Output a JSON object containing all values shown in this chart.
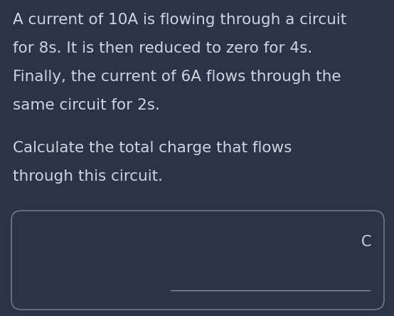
{
  "background_color": "#2b3347",
  "text_color": "#d0d4de",
  "line1": "A current of 10A is flowing through a circuit",
  "line2": "for 8s. It is then reduced to zero for 4s.",
  "line3": "Finally, the current of 6A flows through the",
  "line4": "same circuit for 2s.",
  "line5": "Calculate the total charge that flows",
  "line6": "through this circuit.",
  "answer_label": "C",
  "box_bg": "#2b3347",
  "box_border": "#6a7a90",
  "font_size": 15.5,
  "answer_font_size": 15,
  "fig_width": 5.54,
  "fig_height": 4.44,
  "dpi": 100
}
